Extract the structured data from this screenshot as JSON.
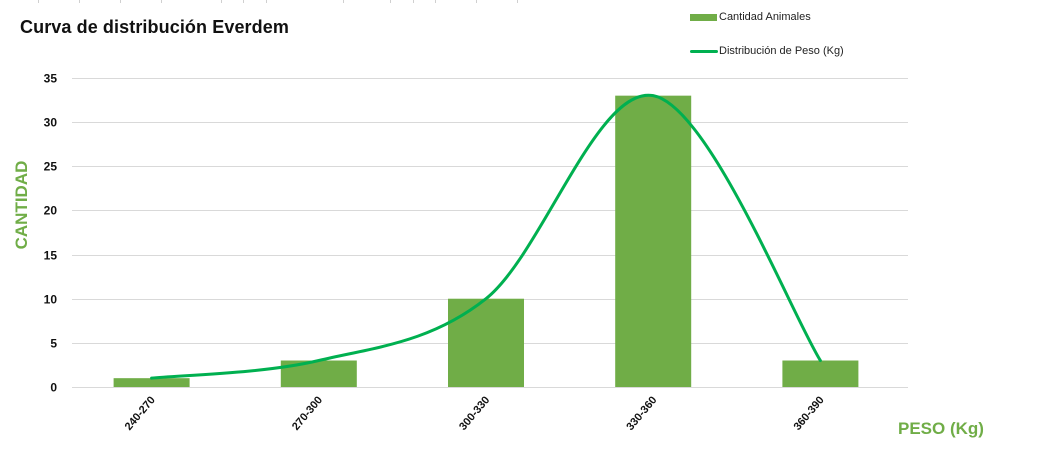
{
  "chart_data": {
    "type": "bar",
    "title": "Curva de distribución Everdem",
    "xlabel": "PESO (Kg)",
    "ylabel": "CANTIDAD",
    "categories": [
      "240-270",
      "270-300",
      "300-330",
      "330-360",
      "360-390"
    ],
    "series": [
      {
        "name": "Cantidad Animales",
        "type": "bar",
        "color": "#70ad47",
        "values": [
          1,
          3,
          10,
          33,
          3
        ]
      },
      {
        "name": "Distribución de Peso (Kg)",
        "type": "line",
        "smooth": true,
        "color": "#00b050",
        "values": [
          1,
          3,
          10,
          33,
          3
        ]
      }
    ],
    "ylim": [
      0,
      35
    ],
    "yticks": [
      0,
      5,
      10,
      15,
      20,
      25,
      30,
      35
    ],
    "grid": true,
    "legend_position": "top-right"
  },
  "legend": {
    "items": [
      {
        "label": "Cantidad Animales",
        "kind": "bar",
        "color": "#70ad47"
      },
      {
        "label": "Distribución de Peso (Kg)",
        "kind": "line",
        "color": "#00b050"
      }
    ]
  },
  "colors": {
    "bar": "#70ad47",
    "line": "#00b050",
    "axis_title": "#70ad47",
    "grid": "#d9d9d9"
  }
}
